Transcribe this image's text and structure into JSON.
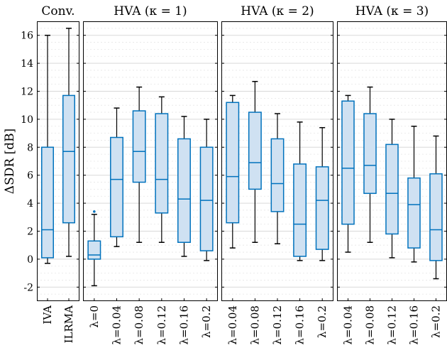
{
  "chart_data": {
    "type": "box",
    "ylabel": "ΔSDR [dB]",
    "ylim": [
      -3,
      17
    ],
    "yticks": [
      -2,
      0,
      2,
      4,
      6,
      8,
      10,
      12,
      14,
      16
    ],
    "grid": true,
    "panels": [
      {
        "title": "Conv.",
        "categories": [
          "IVA",
          "ILRMA"
        ],
        "boxes": [
          {
            "label": "IVA",
            "min": -0.3,
            "q1": 0.1,
            "median": 2.1,
            "q3": 8.0,
            "max": 16.0,
            "outliers": []
          },
          {
            "label": "ILRMA",
            "min": 0.2,
            "q1": 2.6,
            "median": 7.7,
            "q3": 11.7,
            "max": 16.5,
            "outliers": []
          }
        ]
      },
      {
        "title": "HVA (κ = 1)",
        "categories": [
          "λ=0",
          "λ=0.04",
          "λ=0.08",
          "λ=0.12",
          "λ=0.16",
          "λ=0.2"
        ],
        "boxes": [
          {
            "label": "λ=0",
            "min": -1.9,
            "q1": 0.0,
            "median": 0.3,
            "q3": 1.3,
            "max": 3.2,
            "outliers": [
              3.4
            ]
          },
          {
            "label": "λ=0.04",
            "min": 0.9,
            "q1": 1.6,
            "median": 5.7,
            "q3": 8.7,
            "max": 10.8,
            "outliers": []
          },
          {
            "label": "λ=0.08",
            "min": 1.2,
            "q1": 5.5,
            "median": 7.7,
            "q3": 10.6,
            "max": 12.3,
            "outliers": []
          },
          {
            "label": "λ=0.12",
            "min": 1.2,
            "q1": 3.3,
            "median": 5.7,
            "q3": 10.4,
            "max": 11.6,
            "outliers": []
          },
          {
            "label": "λ=0.16",
            "min": 0.2,
            "q1": 1.2,
            "median": 4.3,
            "q3": 8.6,
            "max": 10.2,
            "outliers": []
          },
          {
            "label": "λ=0.2",
            "min": -0.1,
            "q1": 0.6,
            "median": 4.2,
            "q3": 8.0,
            "max": 10.0,
            "outliers": []
          }
        ]
      },
      {
        "title": "HVA (κ = 2)",
        "categories": [
          "λ=0.04",
          "λ=0.08",
          "λ=0.12",
          "λ=0.16",
          "λ=0.2"
        ],
        "boxes": [
          {
            "label": "λ=0.04",
            "min": 0.8,
            "q1": 2.6,
            "median": 5.9,
            "q3": 11.2,
            "max": 11.7,
            "outliers": []
          },
          {
            "label": "λ=0.08",
            "min": 1.2,
            "q1": 5.0,
            "median": 6.9,
            "q3": 10.5,
            "max": 12.7,
            "outliers": []
          },
          {
            "label": "λ=0.12",
            "min": 1.1,
            "q1": 3.4,
            "median": 5.4,
            "q3": 8.6,
            "max": 10.4,
            "outliers": []
          },
          {
            "label": "λ=0.16",
            "min": -0.1,
            "q1": 0.2,
            "median": 2.5,
            "q3": 6.8,
            "max": 9.8,
            "outliers": []
          },
          {
            "label": "λ=0.2",
            "min": -0.1,
            "q1": 0.7,
            "median": 4.2,
            "q3": 6.6,
            "max": 9.4,
            "outliers": []
          }
        ]
      },
      {
        "title": "HVA (κ = 3)",
        "categories": [
          "λ=0.04",
          "λ=0.08",
          "λ=0.12",
          "λ=0.16",
          "λ=0.2"
        ],
        "boxes": [
          {
            "label": "λ=0.04",
            "min": 0.5,
            "q1": 2.5,
            "median": 6.5,
            "q3": 11.3,
            "max": 11.7,
            "outliers": []
          },
          {
            "label": "λ=0.08",
            "min": 1.2,
            "q1": 4.7,
            "median": 6.7,
            "q3": 10.4,
            "max": 12.3,
            "outliers": []
          },
          {
            "label": "λ=0.12",
            "min": 0.1,
            "q1": 1.8,
            "median": 4.7,
            "q3": 8.2,
            "max": 10.0,
            "outliers": []
          },
          {
            "label": "λ=0.16",
            "min": -0.2,
            "q1": 0.8,
            "median": 3.9,
            "q3": 5.8,
            "max": 9.5,
            "outliers": []
          },
          {
            "label": "λ=0.2",
            "min": -1.4,
            "q1": -0.1,
            "median": 2.1,
            "q3": 6.1,
            "max": 8.8,
            "outliers": []
          }
        ]
      }
    ]
  }
}
